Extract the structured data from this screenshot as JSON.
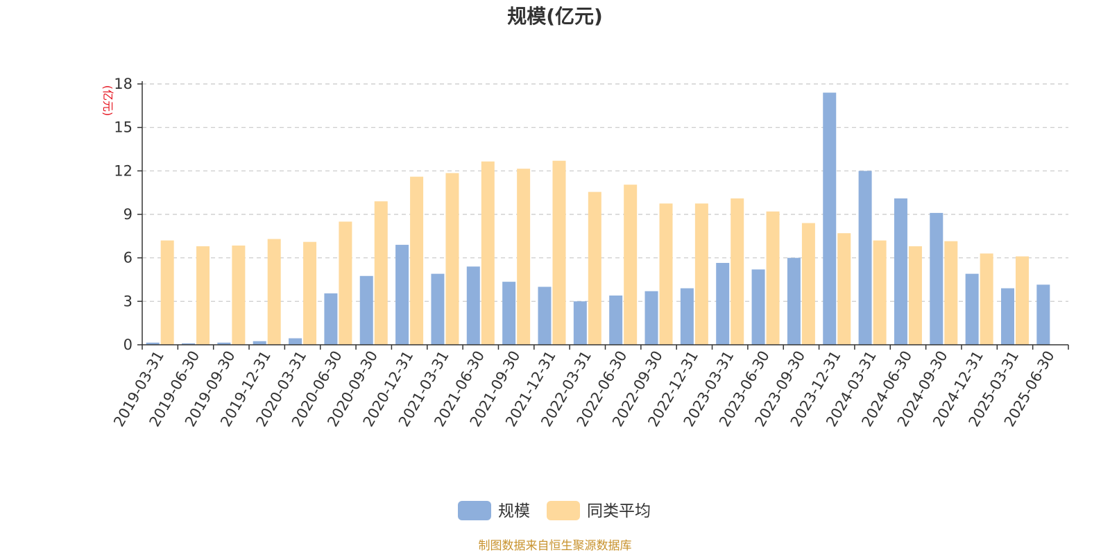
{
  "chart_data": {
    "type": "bar",
    "title": "规模(亿元)",
    "ylabel": "(亿元)",
    "ylim": [
      0,
      18
    ],
    "yticks": [
      0,
      3,
      6,
      9,
      12,
      15,
      18
    ],
    "grid": true,
    "legend_position": "bottom",
    "categories": [
      "2019-03-31",
      "2019-06-30",
      "2019-09-30",
      "2019-12-31",
      "2020-03-31",
      "2020-06-30",
      "2020-09-30",
      "2020-12-31",
      "2021-03-31",
      "2021-06-30",
      "2021-09-30",
      "2021-12-31",
      "2022-03-31",
      "2022-06-30",
      "2022-09-30",
      "2022-12-31",
      "2023-03-31",
      "2023-06-30",
      "2023-09-30",
      "2023-12-31",
      "2024-03-31",
      "2024-06-30",
      "2024-09-30",
      "2024-12-31",
      "2025-03-31",
      "2025-06-30"
    ],
    "series": [
      {
        "name": "规模",
        "color": "#8eafdc",
        "values": [
          0.15,
          0.1,
          0.15,
          0.25,
          0.45,
          3.55,
          4.75,
          6.9,
          4.9,
          5.4,
          4.35,
          4.0,
          3.0,
          3.4,
          3.7,
          3.9,
          5.65,
          5.2,
          6.0,
          17.4,
          12.0,
          10.1,
          9.1,
          4.9,
          3.9,
          4.15
        ]
      },
      {
        "name": "同类平均",
        "color": "#fed99c",
        "values": [
          7.2,
          6.8,
          6.85,
          7.3,
          7.1,
          8.5,
          9.9,
          11.6,
          11.85,
          12.65,
          12.15,
          12.7,
          10.55,
          11.05,
          9.75,
          9.75,
          10.1,
          9.2,
          8.4,
          7.7,
          7.2,
          6.8,
          7.15,
          6.3,
          6.1,
          null
        ]
      }
    ]
  },
  "footer": {
    "source": "制图数据来自恒生聚源数据库"
  }
}
